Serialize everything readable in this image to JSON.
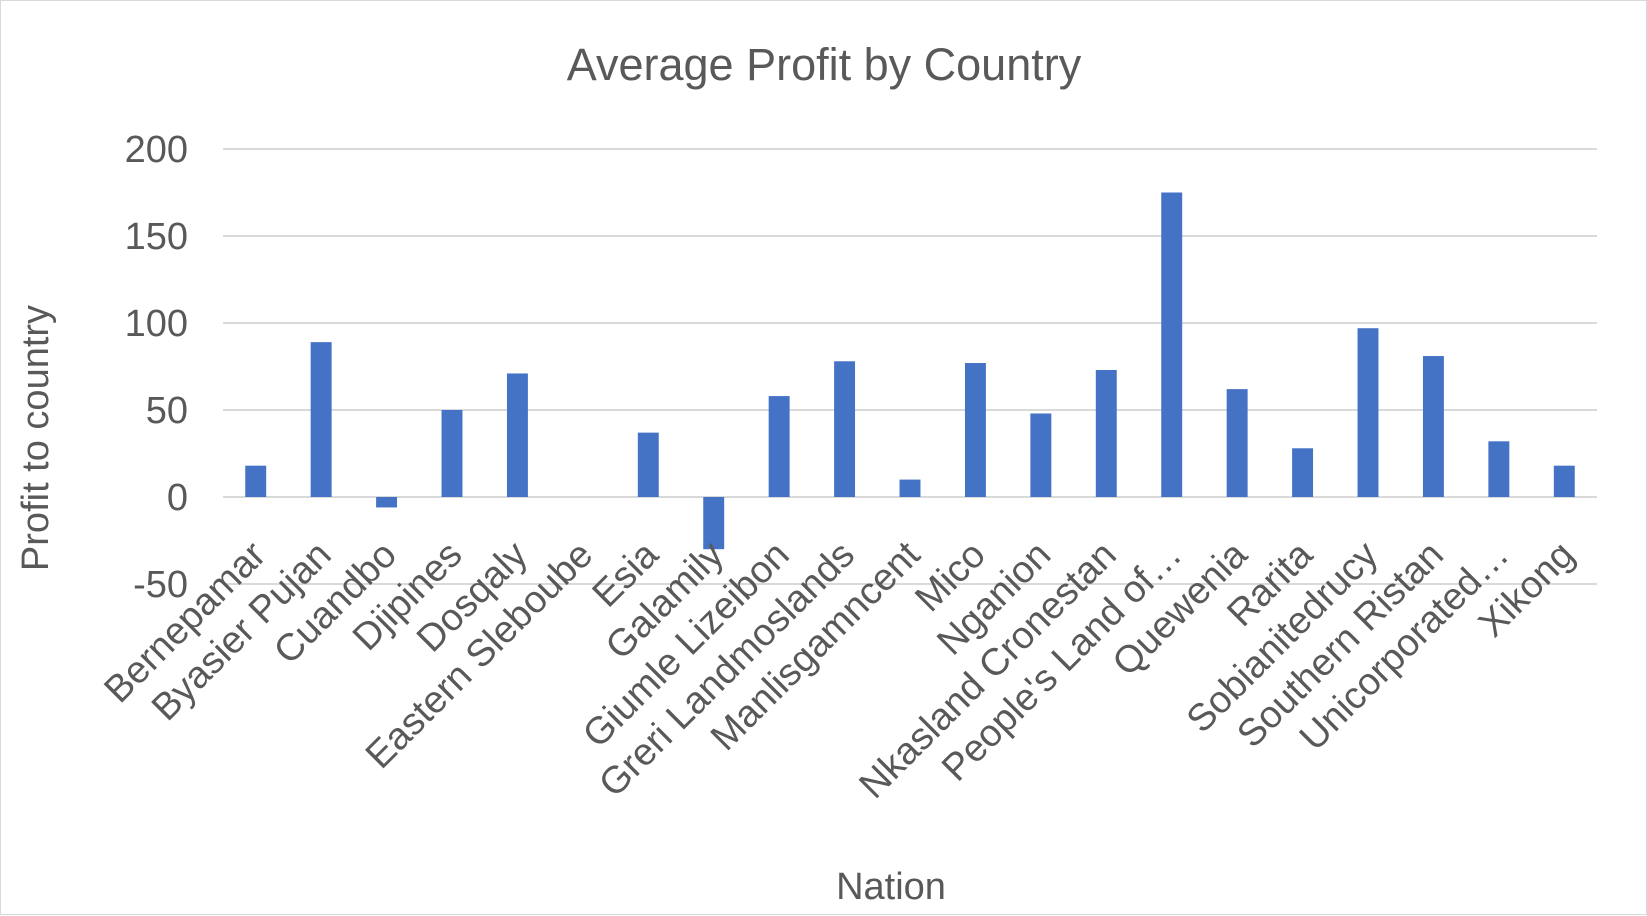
{
  "chart_data": {
    "type": "bar",
    "title": "Average Profit by Country",
    "xlabel": "Nation",
    "ylabel": "Profit to country",
    "categories": [
      "Bernepamar",
      "Byasier Pujan",
      "Cuandbo",
      "Djipines",
      "Dosqaly",
      "Eastern Sleboube",
      "Esia",
      "Galamily",
      "Giumle Lizeibon",
      "Greri Landmoslands",
      "Manlisgamncent",
      "Mico",
      "Nganion",
      "Nkasland Cronestan",
      "People's Land of…",
      "Quewenia",
      "Rarita",
      "Sobianitedrucy",
      "Southern Ristan",
      "Unicorporated…",
      "Xikong"
    ],
    "values": [
      18,
      89,
      -6,
      50,
      71,
      0,
      37,
      -30,
      58,
      78,
      10,
      77,
      48,
      73,
      175,
      62,
      28,
      97,
      81,
      32,
      18
    ],
    "ylim": [
      -50,
      200
    ],
    "yticks": [
      "-50",
      "0",
      "50",
      "100",
      "150",
      "200"
    ],
    "grid": true,
    "legend": "none",
    "colors": {
      "bar": "#4472c4",
      "grid": "#d9d9d9",
      "text": "#595959",
      "border": "#d9d9d9"
    }
  }
}
